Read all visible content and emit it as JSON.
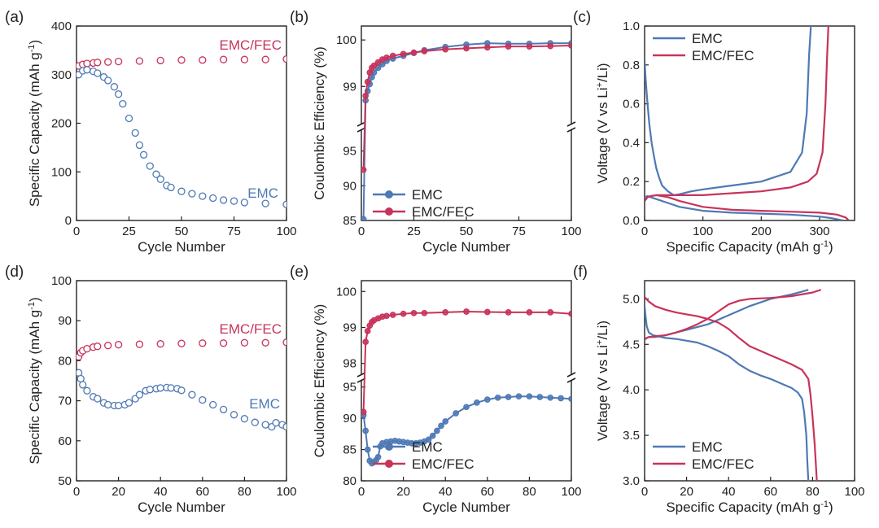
{
  "colors": {
    "emc": "#4e79b4",
    "fec": "#c8335a",
    "axis": "#222222"
  },
  "chart_data": [
    {
      "id": "a",
      "panel_label": "(a)",
      "type": "scatter",
      "xlabel": "Cycle Number",
      "ylabel": "Specific Capacity (mAh g-1)",
      "ylabel_main": "Specific Capacity (mAh g",
      "ylabel_sup": "-1",
      "ylabel_tail": ")",
      "xlim": [
        0,
        100
      ],
      "ylim": [
        0,
        400
      ],
      "xticks": [
        "0",
        "25",
        "50",
        "75",
        "100"
      ],
      "yticks": [
        "0",
        "100",
        "200",
        "300",
        "400"
      ],
      "annotations": [
        "EMC/FEC",
        "EMC"
      ],
      "series": [
        {
          "name": "EMC/FEC",
          "color_key": "fec",
          "x": [
            1,
            3,
            5,
            8,
            10,
            15,
            20,
            30,
            40,
            50,
            60,
            70,
            80,
            90,
            100
          ],
          "y": [
            318,
            321,
            323,
            324,
            325,
            326,
            327,
            328,
            329,
            330,
            330,
            331,
            331,
            331,
            332
          ]
        },
        {
          "name": "EMC",
          "color_key": "emc",
          "x": [
            1,
            3,
            5,
            8,
            10,
            13,
            15,
            18,
            20,
            22,
            25,
            28,
            30,
            32,
            35,
            38,
            40,
            43,
            45,
            50,
            55,
            60,
            65,
            70,
            75,
            80,
            90,
            100
          ],
          "y": [
            300,
            308,
            310,
            307,
            303,
            295,
            288,
            275,
            260,
            240,
            210,
            180,
            155,
            135,
            112,
            95,
            85,
            72,
            68,
            60,
            55,
            50,
            46,
            42,
            40,
            37,
            35,
            33
          ]
        }
      ]
    },
    {
      "id": "b",
      "panel_label": "(b)",
      "type": "scatter",
      "xlabel": "Cycle Number",
      "ylabel": "Coulombic Efficiency (%)",
      "xlim": [
        0,
        100
      ],
      "axis_break": true,
      "ylim_lower": [
        85,
        98
      ],
      "ylim_upper": [
        98.2,
        100.3
      ],
      "xticks": [
        "0",
        "25",
        "50",
        "75",
        "100"
      ],
      "yticks_lower": [
        "85",
        "90",
        "95"
      ],
      "yticks_upper": [
        "99",
        "100"
      ],
      "legend": [
        "EMC",
        "EMC/FEC"
      ],
      "series": [
        {
          "name": "EMC",
          "color_key": "emc",
          "x": [
            1,
            2,
            3,
            4,
            5,
            6,
            8,
            10,
            12,
            15,
            20,
            25,
            30,
            40,
            50,
            60,
            70,
            80,
            90,
            100
          ],
          "y": [
            85.2,
            98.7,
            98.9,
            99.05,
            99.2,
            99.3,
            99.4,
            99.48,
            99.55,
            99.6,
            99.66,
            99.72,
            99.78,
            99.85,
            99.9,
            99.93,
            99.92,
            99.92,
            99.93,
            99.93
          ]
        },
        {
          "name": "EMC/FEC",
          "color_key": "fec",
          "x": [
            1,
            2,
            3,
            4,
            5,
            6,
            8,
            10,
            12,
            15,
            20,
            25,
            30,
            40,
            50,
            60,
            70,
            80,
            90,
            100
          ],
          "y": [
            92.3,
            98.8,
            99.1,
            99.3,
            99.4,
            99.45,
            99.52,
            99.58,
            99.62,
            99.66,
            99.7,
            99.73,
            99.76,
            99.8,
            99.82,
            99.84,
            99.86,
            99.86,
            99.87,
            99.88
          ]
        }
      ]
    },
    {
      "id": "c",
      "panel_label": "(c)",
      "type": "line",
      "xlabel": "Specific Capacity (mAh g-1)",
      "xlabel_main": "Specific Capacity (mAh g",
      "xlabel_sup": "-1",
      "xlabel_tail": ")",
      "ylabel": "Voltage (V vs Li+/Li)",
      "ylabel_main": "Voltage (V vs Li",
      "ylabel_sup": "+",
      "ylabel_tail": "/Li)",
      "xlim": [
        0,
        360
      ],
      "ylim": [
        0,
        1.0
      ],
      "xticks": [
        "0",
        "100",
        "200",
        "300"
      ],
      "yticks": [
        "0.0",
        "0.2",
        "0.4",
        "0.6",
        "0.8",
        "1.0"
      ],
      "legend": [
        "EMC",
        "EMC/FEC"
      ],
      "series": [
        {
          "name": "EMC",
          "color_key": "emc",
          "curves": [
            {
              "x": [
                0,
                2,
                5,
                8,
                12,
                16,
                20,
                25,
                30,
                40,
                50,
                60,
                80,
                100,
                150,
                200,
                250,
                270,
                278,
                282,
                285
              ],
              "y": [
                0.82,
                0.72,
                0.6,
                0.5,
                0.4,
                0.33,
                0.27,
                0.22,
                0.18,
                0.15,
                0.13,
                0.135,
                0.15,
                0.16,
                0.18,
                0.2,
                0.25,
                0.35,
                0.55,
                0.85,
                1.0
              ]
            },
            {
              "x": [
                0,
                5,
                10,
                20,
                40,
                60,
                100,
                150,
                200,
                250,
                300,
                320,
                340
              ],
              "y": [
                0.12,
                0.125,
                0.12,
                0.11,
                0.09,
                0.07,
                0.05,
                0.04,
                0.035,
                0.03,
                0.02,
                0.012,
                0.0
              ]
            }
          ]
        },
        {
          "name": "EMC/FEC",
          "color_key": "fec",
          "curves": [
            {
              "x": [
                0,
                5,
                10,
                20,
                40,
                60,
                100,
                150,
                200,
                250,
                280,
                295,
                305,
                310,
                313,
                315
              ],
              "y": [
                0.1,
                0.12,
                0.125,
                0.13,
                0.13,
                0.13,
                0.13,
                0.14,
                0.15,
                0.17,
                0.2,
                0.24,
                0.35,
                0.6,
                0.85,
                1.0
              ]
            },
            {
              "x": [
                0,
                5,
                10,
                20,
                40,
                60,
                100,
                150,
                200,
                250,
                300,
                330,
                345,
                350
              ],
              "y": [
                0.1,
                0.12,
                0.125,
                0.13,
                0.12,
                0.1,
                0.07,
                0.055,
                0.05,
                0.045,
                0.04,
                0.03,
                0.015,
                0.0
              ]
            }
          ]
        }
      ]
    },
    {
      "id": "d",
      "panel_label": "(d)",
      "type": "scatter",
      "xlabel": "Cycle Number",
      "ylabel": "Specific Capacity (mAh g-1)",
      "ylabel_main": "Specific Capacity (mAh g",
      "ylabel_sup": "-1",
      "ylabel_tail": ")",
      "xlim": [
        0,
        100
      ],
      "ylim": [
        50,
        100
      ],
      "xticks": [
        "0",
        "20",
        "40",
        "60",
        "80",
        "100"
      ],
      "yticks": [
        "50",
        "60",
        "70",
        "80",
        "90",
        "100"
      ],
      "annotations": [
        "EMC/FEC",
        "EMC"
      ],
      "series": [
        {
          "name": "EMC/FEC",
          "color_key": "fec",
          "x": [
            1,
            2,
            3,
            5,
            8,
            10,
            15,
            20,
            30,
            40,
            50,
            60,
            70,
            80,
            90,
            100
          ],
          "y": [
            81,
            82,
            82.5,
            83,
            83.4,
            83.6,
            83.8,
            84,
            84.1,
            84.2,
            84.3,
            84.4,
            84.4,
            84.5,
            84.5,
            84.6
          ]
        },
        {
          "name": "EMC",
          "color_key": "emc",
          "x": [
            1,
            2,
            3,
            5,
            8,
            10,
            13,
            15,
            18,
            20,
            23,
            25,
            28,
            30,
            33,
            35,
            38,
            40,
            43,
            45,
            48,
            50,
            55,
            60,
            65,
            70,
            75,
            80,
            85,
            90,
            93,
            95,
            98,
            100
          ],
          "y": [
            77,
            75.5,
            74,
            72.5,
            71,
            70.5,
            69.5,
            69,
            68.8,
            68.8,
            69,
            69.5,
            70.5,
            71.5,
            72.5,
            72.8,
            73,
            73.2,
            73.3,
            73.2,
            73,
            72.6,
            71.5,
            70.2,
            69,
            67.8,
            66.5,
            65.5,
            64.6,
            64,
            63.5,
            64.5,
            64,
            63.5
          ]
        }
      ]
    },
    {
      "id": "e",
      "panel_label": "(e)",
      "type": "scatter",
      "xlabel": "Cycle Number",
      "ylabel": "Coulombic Efficiency (%)",
      "xlim": [
        0,
        100
      ],
      "axis_break": true,
      "ylim_lower": [
        80,
        96
      ],
      "ylim_upper": [
        97.7,
        100.3
      ],
      "xticks": [
        "0",
        "20",
        "40",
        "60",
        "80",
        "100"
      ],
      "yticks_lower": [
        "80",
        "85",
        "90",
        "95"
      ],
      "yticks_upper": [
        "98",
        "99",
        "100"
      ],
      "legend": [
        "EMC",
        "EMC/FEC"
      ],
      "series": [
        {
          "name": "EMC",
          "color_key": "emc",
          "x": [
            1,
            2,
            3,
            4,
            5,
            6,
            7,
            8,
            9,
            10,
            12,
            14,
            16,
            18,
            20,
            22,
            24,
            26,
            28,
            30,
            32,
            34,
            36,
            38,
            40,
            45,
            50,
            55,
            60,
            65,
            70,
            75,
            80,
            85,
            90,
            95,
            100
          ],
          "y": [
            90.5,
            88,
            85,
            83.2,
            82.8,
            83,
            83.3,
            83.8,
            85.5,
            86,
            86.2,
            86.3,
            86.4,
            86.3,
            86.2,
            86.1,
            86,
            86,
            86.1,
            86.3,
            86.6,
            87.2,
            88,
            88.8,
            89.5,
            90.8,
            91.8,
            92.5,
            93,
            93.3,
            93.4,
            93.5,
            93.5,
            93.4,
            93.3,
            93.2,
            93.1
          ]
        },
        {
          "name": "EMC/FEC",
          "color_key": "fec",
          "x": [
            1,
            2,
            3,
            4,
            5,
            6,
            8,
            10,
            12,
            15,
            20,
            25,
            30,
            40,
            50,
            60,
            70,
            80,
            90,
            100
          ],
          "y": [
            91,
            98.6,
            98.9,
            99.05,
            99.15,
            99.2,
            99.25,
            99.3,
            99.32,
            99.35,
            99.38,
            99.4,
            99.4,
            99.42,
            99.44,
            99.43,
            99.42,
            99.42,
            99.42,
            99.38
          ]
        }
      ]
    },
    {
      "id": "f",
      "panel_label": "(f)",
      "type": "line",
      "xlabel": "Specific Capacity (mAh g-1)",
      "xlabel_main": "Specific Capacity (mAh g",
      "xlabel_sup": "-1",
      "xlabel_tail": ")",
      "ylabel": "Voltage (V vs Li+/Li)",
      "ylabel_main": "Voltage (V vs Li",
      "ylabel_sup": "+",
      "ylabel_tail": "/Li)",
      "xlim": [
        0,
        100
      ],
      "ylim": [
        3.0,
        5.2
      ],
      "xticks": [
        "0",
        "20",
        "40",
        "60",
        "80",
        "100"
      ],
      "yticks": [
        "3.0",
        "3.5",
        "4.0",
        "4.5",
        "5.0"
      ],
      "legend": [
        "EMC",
        "EMC/FEC"
      ],
      "series": [
        {
          "name": "EMC",
          "color_key": "emc",
          "curves": [
            {
              "x": [
                0,
                0.5,
                1,
                2,
                4,
                6,
                8,
                10,
                15,
                20,
                25,
                30,
                35,
                40,
                45,
                50,
                55,
                60,
                65,
                70,
                73,
                75,
                76,
                77,
                77.5,
                78
              ],
              "y": [
                4.92,
                4.8,
                4.7,
                4.63,
                4.6,
                4.59,
                4.58,
                4.57,
                4.56,
                4.54,
                4.52,
                4.48,
                4.43,
                4.37,
                4.28,
                4.21,
                4.16,
                4.12,
                4.07,
                4.02,
                3.97,
                3.9,
                3.75,
                3.5,
                3.2,
                3.0
              ]
            },
            {
              "x": [
                0,
                1,
                2,
                5,
                10,
                20,
                30,
                40,
                50,
                60,
                70,
                75,
                78
              ],
              "y": [
                4.55,
                4.57,
                4.58,
                4.58,
                4.6,
                4.66,
                4.72,
                4.82,
                4.92,
                5.0,
                5.05,
                5.08,
                5.1
              ]
            }
          ]
        },
        {
          "name": "EMC/FEC",
          "color_key": "fec",
          "curves": [
            {
              "x": [
                0,
                2,
                5,
                10,
                15,
                20,
                25,
                30,
                35,
                40,
                45,
                50,
                55,
                60,
                65,
                70,
                75,
                78,
                79,
                80,
                81,
                81.5,
                82
              ],
              "y": [
                5.02,
                4.97,
                4.92,
                4.88,
                4.85,
                4.83,
                4.81,
                4.78,
                4.74,
                4.67,
                4.57,
                4.48,
                4.43,
                4.38,
                4.33,
                4.28,
                4.22,
                4.12,
                3.95,
                3.7,
                3.4,
                3.2,
                3.0
              ]
            },
            {
              "x": [
                0,
                1,
                2,
                5,
                10,
                15,
                20,
                25,
                30,
                35,
                40,
                45,
                50,
                60,
                70,
                80,
                84
              ],
              "y": [
                4.56,
                4.57,
                4.58,
                4.59,
                4.6,
                4.63,
                4.67,
                4.72,
                4.78,
                4.86,
                4.94,
                4.98,
                5.0,
                5.01,
                5.03,
                5.07,
                5.1
              ]
            }
          ]
        }
      ]
    }
  ]
}
